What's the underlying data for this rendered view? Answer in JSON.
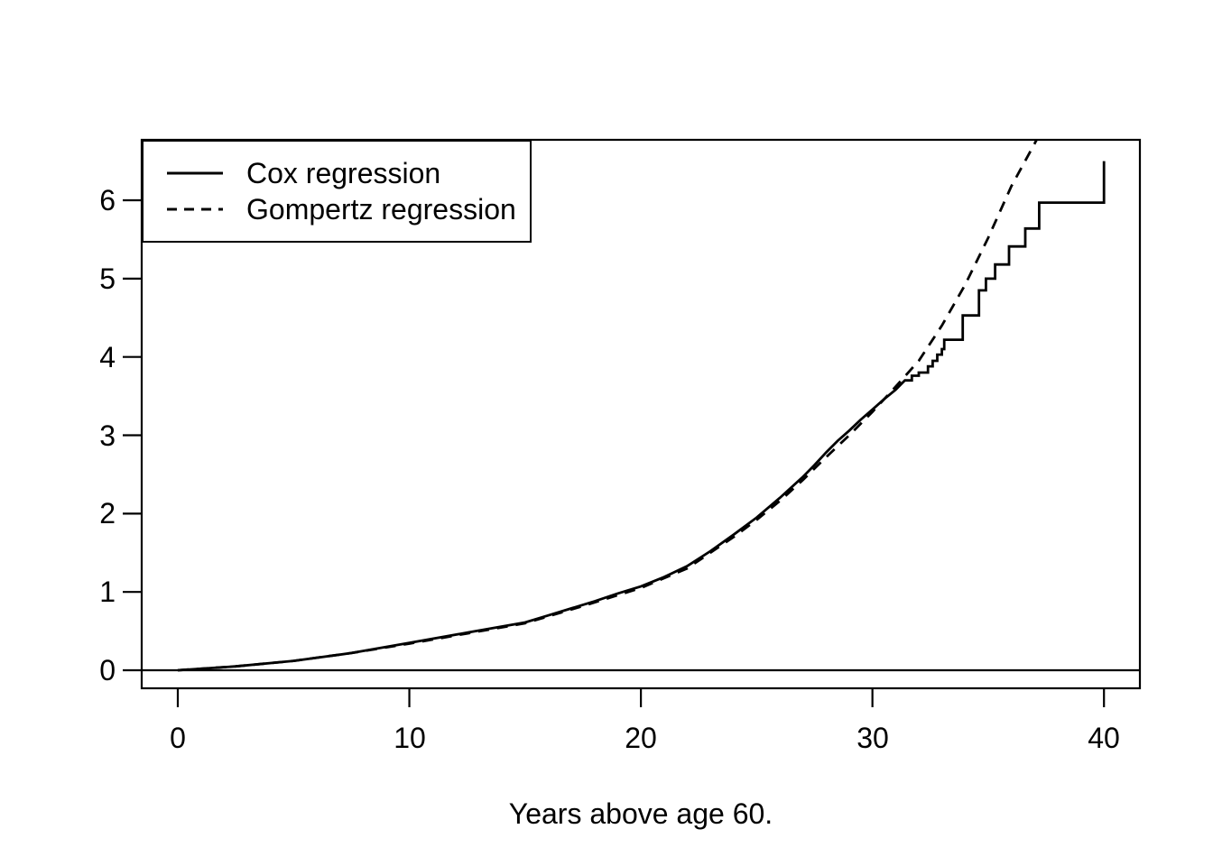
{
  "figure": {
    "background": "#ffffff",
    "stroke_color": "#000000"
  },
  "chart_data": {
    "type": "line",
    "title": "",
    "xlabel": "Years above age 60.",
    "ylabel": "",
    "xlim": [
      -1.56,
      41.55
    ],
    "ylim": [
      -0.23,
      6.79
    ],
    "xticks": [
      0,
      10,
      20,
      30,
      40
    ],
    "yticks": [
      0,
      1,
      2,
      3,
      4,
      5,
      6
    ],
    "grid": false,
    "reference_lines": [
      {
        "axis": "h",
        "value": 0
      }
    ],
    "legend": {
      "position": "top-left",
      "entries": [
        {
          "label": "Cox regression",
          "line": "solid"
        },
        {
          "label": "Gompertz regression",
          "line": "dashed"
        }
      ]
    },
    "series": [
      {
        "name": "Cox regression",
        "style": "solid",
        "points": [
          [
            0,
            0
          ],
          [
            2.5,
            0.05
          ],
          [
            5,
            0.12
          ],
          [
            7.5,
            0.22
          ],
          [
            10,
            0.35
          ],
          [
            12.5,
            0.48
          ],
          [
            15,
            0.61
          ],
          [
            16,
            0.7
          ],
          [
            17,
            0.79
          ],
          [
            18,
            0.88
          ],
          [
            19,
            0.98
          ],
          [
            20,
            1.07
          ],
          [
            21,
            1.19
          ],
          [
            22,
            1.33
          ],
          [
            23,
            1.52
          ],
          [
            24,
            1.73
          ],
          [
            25,
            1.95
          ],
          [
            26,
            2.2
          ],
          [
            27,
            2.47
          ],
          [
            27.5,
            2.62
          ],
          [
            28,
            2.78
          ],
          [
            28.5,
            2.93
          ],
          [
            29,
            3.06
          ],
          [
            29.5,
            3.2
          ],
          [
            30,
            3.33
          ],
          [
            30.5,
            3.46
          ],
          [
            31,
            3.58
          ],
          [
            31.4,
            3.7
          ],
          [
            31.7,
            3.7
          ],
          [
            31.7,
            3.76
          ],
          [
            32.0,
            3.76
          ],
          [
            32.0,
            3.8
          ],
          [
            32.4,
            3.8
          ],
          [
            32.4,
            3.88
          ],
          [
            32.6,
            3.88
          ],
          [
            32.6,
            3.95
          ],
          [
            32.8,
            3.95
          ],
          [
            32.8,
            4.03
          ],
          [
            33.0,
            4.03
          ],
          [
            33.0,
            4.1
          ],
          [
            33.1,
            4.1
          ],
          [
            33.1,
            4.22
          ],
          [
            33.9,
            4.22
          ],
          [
            33.9,
            4.53
          ],
          [
            34.6,
            4.53
          ],
          [
            34.6,
            4.85
          ],
          [
            34.9,
            4.85
          ],
          [
            34.9,
            5.0
          ],
          [
            35.3,
            5.0
          ],
          [
            35.3,
            5.18
          ],
          [
            35.9,
            5.18
          ],
          [
            35.9,
            5.41
          ],
          [
            36.6,
            5.41
          ],
          [
            36.6,
            5.64
          ],
          [
            37.2,
            5.64
          ],
          [
            37.2,
            5.97
          ],
          [
            40,
            5.97
          ],
          [
            40,
            6.5
          ]
        ]
      },
      {
        "name": "Gompertz regression",
        "style": "dashed",
        "points": [
          [
            0,
            0
          ],
          [
            2.5,
            0.05
          ],
          [
            5,
            0.12
          ],
          [
            7.5,
            0.22
          ],
          [
            10,
            0.34
          ],
          [
            12.5,
            0.47
          ],
          [
            15,
            0.6
          ],
          [
            17.5,
            0.82
          ],
          [
            20,
            1.05
          ],
          [
            22,
            1.3
          ],
          [
            24,
            1.7
          ],
          [
            25,
            1.92
          ],
          [
            26,
            2.16
          ],
          [
            27,
            2.43
          ],
          [
            28,
            2.72
          ],
          [
            29,
            3.0
          ],
          [
            30,
            3.3
          ],
          [
            31,
            3.62
          ],
          [
            32,
            3.95
          ],
          [
            33,
            4.4
          ],
          [
            34,
            4.92
          ],
          [
            35,
            5.52
          ],
          [
            36,
            6.18
          ],
          [
            37,
            6.72
          ],
          [
            37.4,
            6.95
          ]
        ]
      }
    ]
  }
}
